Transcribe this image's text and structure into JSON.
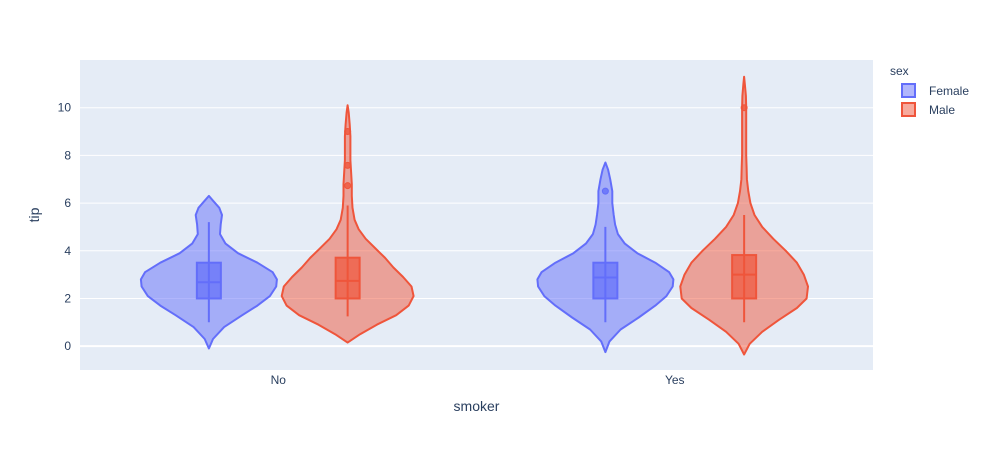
{
  "chart_data": {
    "type": "violin",
    "xlabel": "smoker",
    "ylabel": "tip",
    "categories": [
      "No",
      "Yes"
    ],
    "ylim": [
      -1,
      12
    ],
    "yticks": [
      0,
      2,
      4,
      6,
      8,
      10
    ],
    "grid": true,
    "legend": {
      "title": "sex",
      "placement": "top-right"
    },
    "colors": {
      "plot_bg": "#e5ecf6",
      "grid": "#ffffff",
      "text": "#2a3f5f"
    },
    "series": [
      {
        "name": "Female",
        "color": "#636efa",
        "groups": [
          {
            "category": "No",
            "min": 1.0,
            "q1": 2.0,
            "median": 2.68,
            "q3": 3.5,
            "max": 5.2,
            "kde_low": -0.1,
            "kde_high": 6.3,
            "outliers": [],
            "profile": [
              [
                -0.1,
                0.0
              ],
              [
                0.3,
                0.06
              ],
              [
                0.8,
                0.22
              ],
              [
                1.3,
                0.48
              ],
              [
                1.7,
                0.7
              ],
              [
                2.1,
                0.88
              ],
              [
                2.5,
                0.97
              ],
              [
                2.8,
                0.98
              ],
              [
                3.1,
                0.92
              ],
              [
                3.5,
                0.7
              ],
              [
                3.9,
                0.42
              ],
              [
                4.3,
                0.24
              ],
              [
                4.7,
                0.16
              ],
              [
                5.1,
                0.17
              ],
              [
                5.5,
                0.19
              ],
              [
                5.8,
                0.15
              ],
              [
                6.1,
                0.06
              ],
              [
                6.3,
                0.0
              ]
            ]
          },
          {
            "category": "Yes",
            "min": 1.0,
            "q1": 2.0,
            "median": 2.88,
            "q3": 3.5,
            "max": 5.0,
            "kde_low": -0.25,
            "kde_high": 7.7,
            "outliers": [
              6.5
            ],
            "profile": [
              [
                -0.25,
                0.0
              ],
              [
                0.2,
                0.06
              ],
              [
                0.7,
                0.22
              ],
              [
                1.2,
                0.48
              ],
              [
                1.7,
                0.72
              ],
              [
                2.1,
                0.88
              ],
              [
                2.5,
                0.97
              ],
              [
                2.8,
                0.98
              ],
              [
                3.1,
                0.92
              ],
              [
                3.5,
                0.72
              ],
              [
                3.9,
                0.46
              ],
              [
                4.3,
                0.28
              ],
              [
                4.7,
                0.18
              ],
              [
                5.1,
                0.14
              ],
              [
                5.5,
                0.12
              ],
              [
                6.0,
                0.1
              ],
              [
                6.5,
                0.1
              ],
              [
                7.0,
                0.07
              ],
              [
                7.4,
                0.04
              ],
              [
                7.7,
                0.0
              ]
            ]
          }
        ]
      },
      {
        "name": "Male",
        "color": "#ef553b",
        "groups": [
          {
            "category": "No",
            "min": 1.25,
            "q1": 2.0,
            "median": 2.74,
            "q3": 3.71,
            "max": 5.9,
            "kde_low": 0.15,
            "kde_high": 10.1,
            "outliers": [
              6.73,
              7.58,
              9.0
            ],
            "profile": [
              [
                0.15,
                0.0
              ],
              [
                0.5,
                0.18
              ],
              [
                0.9,
                0.42
              ],
              [
                1.3,
                0.7
              ],
              [
                1.7,
                0.88
              ],
              [
                2.1,
                0.95
              ],
              [
                2.5,
                0.92
              ],
              [
                2.9,
                0.8
              ],
              [
                3.3,
                0.66
              ],
              [
                3.7,
                0.54
              ],
              [
                4.1,
                0.4
              ],
              [
                4.5,
                0.26
              ],
              [
                4.9,
                0.16
              ],
              [
                5.3,
                0.1
              ],
              [
                5.8,
                0.07
              ],
              [
                6.3,
                0.06
              ],
              [
                6.8,
                0.06
              ],
              [
                7.3,
                0.05
              ],
              [
                7.8,
                0.04
              ],
              [
                8.3,
                0.04
              ],
              [
                8.8,
                0.04
              ],
              [
                9.3,
                0.03
              ],
              [
                9.8,
                0.015
              ],
              [
                10.1,
                0.0
              ]
            ]
          },
          {
            "category": "Yes",
            "min": 1.0,
            "q1": 2.0,
            "median": 3.0,
            "q3": 3.82,
            "max": 5.5,
            "kde_low": -0.35,
            "kde_high": 11.3,
            "outliers": [
              10.0
            ],
            "profile": [
              [
                -0.35,
                0.0
              ],
              [
                0.1,
                0.08
              ],
              [
                0.6,
                0.26
              ],
              [
                1.1,
                0.5
              ],
              [
                1.6,
                0.76
              ],
              [
                2.0,
                0.9
              ],
              [
                2.5,
                0.92
              ],
              [
                3.0,
                0.86
              ],
              [
                3.5,
                0.76
              ],
              [
                4.0,
                0.6
              ],
              [
                4.5,
                0.42
              ],
              [
                5.0,
                0.26
              ],
              [
                5.5,
                0.15
              ],
              [
                6.0,
                0.09
              ],
              [
                6.5,
                0.06
              ],
              [
                7.0,
                0.04
              ],
              [
                7.5,
                0.035
              ],
              [
                8.0,
                0.03
              ],
              [
                8.5,
                0.03
              ],
              [
                9.0,
                0.03
              ],
              [
                9.5,
                0.03
              ],
              [
                10.0,
                0.03
              ],
              [
                10.5,
                0.025
              ],
              [
                11.0,
                0.01
              ],
              [
                11.3,
                0.0
              ]
            ]
          }
        ]
      }
    ]
  }
}
